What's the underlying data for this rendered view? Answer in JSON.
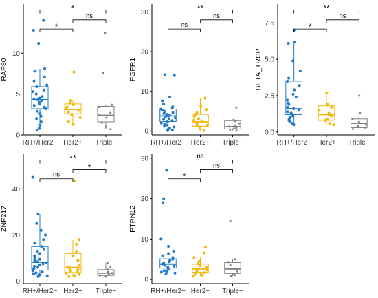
{
  "chart_data": [
    {
      "type": "box",
      "ylabel": "RAP80",
      "categories": [
        "RH+/Her2−",
        "Her2+",
        "Triple−"
      ],
      "yticks": [
        0,
        5,
        10
      ],
      "ylim": [
        0,
        16
      ],
      "colors": [
        "#1f78c8",
        "#f2b705",
        "#7f7f7f"
      ],
      "boxes": [
        {
          "q1": 3.2,
          "median": 4.3,
          "q3": 5.9,
          "wlow": 0.6,
          "whigh": 8.1
        },
        {
          "q1": 2.6,
          "median": 3.1,
          "q3": 3.8,
          "wlow": 1.3,
          "whigh": 4.2
        },
        {
          "q1": 1.6,
          "median": 2.4,
          "q3": 3.5,
          "wlow": 0.7,
          "whigh": 3.7
        }
      ],
      "points": [
        [
          14.0,
          12.8,
          11.2,
          8.1,
          7.8,
          7.1,
          6.6,
          6.1,
          5.9,
          5.5,
          5.3,
          5.0,
          4.7,
          4.5,
          4.4,
          4.3,
          4.2,
          4.0,
          3.8,
          3.6,
          3.4,
          3.2,
          2.9,
          2.6,
          2.3,
          2.0,
          1.6,
          1.2,
          0.8,
          0.6
        ],
        [
          7.7,
          4.2,
          3.9,
          3.7,
          3.4,
          3.2,
          3.0,
          2.8,
          2.5,
          2.1,
          1.6,
          1.3
        ],
        [
          12.5,
          7.6,
          3.7,
          3.4,
          2.7,
          2.4,
          2.1,
          1.5,
          1.0,
          0.7
        ]
      ],
      "signif": [
        {
          "from": 0,
          "to": 1,
          "label": "*"
        },
        {
          "from": 1,
          "to": 2,
          "label": "ns"
        },
        {
          "from": 0,
          "to": 2,
          "label": "*"
        }
      ]
    },
    {
      "type": "box",
      "ylabel": "FGFR1",
      "categories": [
        "RH+/Her2−",
        "Her2+",
        "Triple−"
      ],
      "yticks": [
        0,
        10,
        20,
        30
      ],
      "ylim": [
        -1,
        32
      ],
      "colors": [
        "#1f78c8",
        "#f2b705",
        "#7f7f7f"
      ],
      "boxes": [
        {
          "q1": 2.4,
          "median": 3.8,
          "q3": 5.5,
          "wlow": 0.1,
          "whigh": 8.6
        },
        {
          "q1": 1.2,
          "median": 2.3,
          "q3": 4.2,
          "wlow": 0.1,
          "whigh": 8.3
        },
        {
          "q1": 0.5,
          "median": 1.1,
          "q3": 2.6,
          "wlow": 0.1,
          "whigh": 2.8
        }
      ],
      "points": [
        [
          14.2,
          14.0,
          8.6,
          7.6,
          6.8,
          6.1,
          5.8,
          5.5,
          5.2,
          4.9,
          4.6,
          4.4,
          4.2,
          4.0,
          3.8,
          3.6,
          3.3,
          3.1,
          2.9,
          2.6,
          2.3,
          2.0,
          1.8,
          1.5,
          1.2,
          1.0,
          0.7,
          0.4,
          0.2,
          0.1
        ],
        [
          8.3,
          6.2,
          5.4,
          4.6,
          4.2,
          3.7,
          3.1,
          2.7,
          2.3,
          1.9,
          1.5,
          1.2,
          0.9,
          0.5,
          0.1
        ],
        [
          5.9,
          2.8,
          2.5,
          1.9,
          1.4,
          1.1,
          0.8,
          0.6,
          0.3,
          0.1
        ]
      ],
      "signif": [
        {
          "from": 0,
          "to": 1,
          "label": "ns"
        },
        {
          "from": 1,
          "to": 2,
          "label": "ns"
        },
        {
          "from": 0,
          "to": 2,
          "label": "**"
        }
      ]
    },
    {
      "type": "box",
      "ylabel": "BETA_TRCP",
      "categories": [
        "RH+/Her2−",
        "Her2+",
        "Triple−"
      ],
      "yticks": [
        0.0,
        2.5,
        5.0,
        7.5
      ],
      "ylim": [
        -0.2,
        8.8
      ],
      "colors": [
        "#1f78c8",
        "#f2b705",
        "#7f7f7f"
      ],
      "boxes": [
        {
          "q1": 1.2,
          "median": 1.6,
          "q3": 3.5,
          "wlow": 0.5,
          "whigh": 6.2
        },
        {
          "q1": 0.8,
          "median": 1.2,
          "q3": 1.8,
          "wlow": 0.5,
          "whigh": 2.7
        },
        {
          "q1": 0.3,
          "median": 0.6,
          "q3": 0.9,
          "wlow": 0.2,
          "whigh": 1.3
        }
      ],
      "points": [
        [
          7.0,
          6.2,
          6.1,
          4.9,
          4.2,
          3.7,
          3.5,
          3.2,
          2.9,
          2.6,
          2.4,
          2.2,
          2.0,
          1.9,
          1.7,
          1.6,
          1.5,
          1.4,
          1.3,
          1.2,
          1.1,
          1.0,
          0.9,
          0.8,
          0.7,
          0.6,
          0.5
        ],
        [
          2.7,
          1.9,
          1.7,
          1.5,
          1.3,
          1.2,
          1.1,
          0.9,
          0.8,
          0.6,
          0.5
        ],
        [
          2.5,
          1.3,
          0.9,
          0.7,
          0.5,
          0.4,
          0.3,
          0.2
        ]
      ],
      "signif": [
        {
          "from": 0,
          "to": 1,
          "label": "*"
        },
        {
          "from": 1,
          "to": 2,
          "label": "ns"
        },
        {
          "from": 0,
          "to": 2,
          "label": "**"
        }
      ]
    },
    {
      "type": "box",
      "ylabel": "ZNF217",
      "categories": [
        "RH+/Her2−",
        "Her2+",
        "Triple−"
      ],
      "yticks": [
        0,
        20,
        40
      ],
      "ylim": [
        -1,
        55
      ],
      "colors": [
        "#1f78c8",
        "#f2b705",
        "#7f7f7f"
      ],
      "boxes": [
        {
          "q1": 4.8,
          "median": 8.2,
          "q3": 15.0,
          "wlow": 2.0,
          "whigh": 29.0
        },
        {
          "q1": 3.8,
          "median": 6.0,
          "q3": 12.0,
          "wlow": 2.0,
          "whigh": 18.0
        },
        {
          "q1": 2.5,
          "median": 3.5,
          "q3": 5.0,
          "wlow": 1.8,
          "whigh": 8.0
        }
      ],
      "points": [
        [
          45.0,
          29.0,
          25.0,
          22.0,
          20.0,
          18.0,
          16.5,
          15.0,
          14.0,
          13.0,
          12.0,
          11.0,
          10.0,
          9.5,
          9.0,
          8.5,
          8.0,
          7.5,
          7.0,
          6.5,
          6.0,
          5.5,
          5.0,
          4.5,
          4.0,
          3.6,
          3.2,
          2.8,
          2.4,
          2.0
        ],
        [
          43.5,
          18.0,
          16.0,
          13.0,
          11.0,
          9.0,
          7.0,
          6.0,
          5.5,
          5.0,
          4.5,
          4.0,
          3.5,
          3.0,
          2.5,
          2.0
        ],
        [
          8.0,
          6.0,
          5.0,
          4.0,
          3.5,
          3.0,
          2.5,
          2.0
        ]
      ],
      "signif": [
        {
          "from": 0,
          "to": 1,
          "label": "ns"
        },
        {
          "from": 1,
          "to": 2,
          "label": "*"
        },
        {
          "from": 0,
          "to": 2,
          "label": "**"
        }
      ]
    },
    {
      "type": "box",
      "ylabel": "PTPN12",
      "categories": [
        "RH+/Her2−",
        "Her2+",
        "Triple−"
      ],
      "yticks": [
        0,
        10,
        20,
        30
      ],
      "ylim": [
        -1,
        31
      ],
      "colors": [
        "#1f78c8",
        "#f2b705",
        "#7f7f7f"
      ],
      "boxes": [
        {
          "q1": 2.8,
          "median": 3.8,
          "q3": 5.1,
          "wlow": 1.4,
          "whigh": 8.2
        },
        {
          "q1": 1.8,
          "median": 2.6,
          "q3": 3.8,
          "wlow": 0.8,
          "whigh": 5.4
        },
        {
          "q1": 1.5,
          "median": 2.6,
          "q3": 4.2,
          "wlow": 0.8,
          "whigh": 5.0
        }
      ],
      "points": [
        [
          27.0,
          20.0,
          19.0,
          10.0,
          8.2,
          7.0,
          6.4,
          5.9,
          5.4,
          5.0,
          4.7,
          4.4,
          4.1,
          3.8,
          3.5,
          3.3,
          3.0,
          2.8,
          2.5,
          2.2,
          2.0,
          1.8,
          1.6,
          1.4
        ],
        [
          8.0,
          6.6,
          5.4,
          4.5,
          3.9,
          3.4,
          3.0,
          2.6,
          2.3,
          2.0,
          1.7,
          1.4,
          1.1,
          0.8
        ],
        [
          14.5,
          5.0,
          4.3,
          3.5,
          2.6,
          2.0,
          1.5,
          1.1,
          0.8
        ]
      ],
      "signif": [
        {
          "from": 0,
          "to": 1,
          "label": "*"
        },
        {
          "from": 1,
          "to": 2,
          "label": "ns"
        },
        {
          "from": 0,
          "to": 2,
          "label": "ns"
        }
      ]
    }
  ]
}
